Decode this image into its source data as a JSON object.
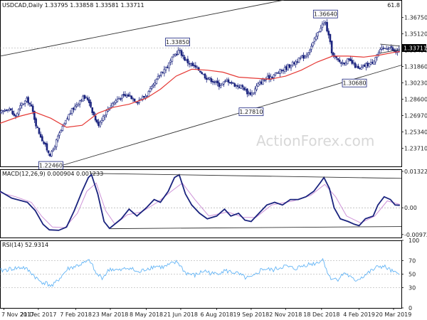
{
  "chart_data": [
    {
      "type": "candlestick",
      "title": "USDCAD,Daily  1.33795 1.33858 1.33581 1.33711",
      "symbol": "USDCAD",
      "timeframe": "Daily",
      "ohlc_last": [
        1.33795,
        1.33858,
        1.33581,
        1.33711
      ],
      "price_label": "1.33711",
      "ylim": [
        1.219,
        1.385
      ],
      "y_ticks": [
        "1.36750",
        "1.35120",
        "1.33490",
        "1.31860",
        "1.30230",
        "1.28600",
        "1.26970",
        "1.25340",
        "1.23710"
      ],
      "y_tick_values": [
        1.3675,
        1.3512,
        1.3349,
        1.3186,
        1.3023,
        1.286,
        1.2697,
        1.2534,
        1.2371
      ],
      "x_ticks": [
        "7 Nov 2017",
        "21 Dec 2017",
        "7 Feb 2018",
        "23 Mar 2018",
        "8 May 2018",
        "21 Jun 2018",
        "6 Aug 2018",
        "19 Sep 2018",
        "2 Nov 2018",
        "18 Dec 2018",
        "4 Feb 2019",
        "20 Mar 2019"
      ],
      "x_tick_days": [
        0,
        44,
        92,
        136,
        182,
        226,
        272,
        316,
        360,
        406,
        454,
        498
      ],
      "x_range_days": [
        -5,
        508
      ],
      "close_anchors": [
        {
          "d": -5,
          "v": 1.272
        },
        {
          "d": 6,
          "v": 1.278
        },
        {
          "d": 14,
          "v": 1.268
        },
        {
          "d": 22,
          "v": 1.28
        },
        {
          "d": 30,
          "v": 1.286
        },
        {
          "d": 36,
          "v": 1.276
        },
        {
          "d": 42,
          "v": 1.258
        },
        {
          "d": 50,
          "v": 1.244
        },
        {
          "d": 55,
          "v": 1.236
        },
        {
          "d": 60,
          "v": 1.23
        },
        {
          "d": 64,
          "v": 1.238
        },
        {
          "d": 70,
          "v": 1.25
        },
        {
          "d": 78,
          "v": 1.262
        },
        {
          "d": 84,
          "v": 1.272
        },
        {
          "d": 92,
          "v": 1.28
        },
        {
          "d": 100,
          "v": 1.288
        },
        {
          "d": 108,
          "v": 1.286
        },
        {
          "d": 114,
          "v": 1.272
        },
        {
          "d": 120,
          "v": 1.26
        },
        {
          "d": 126,
          "v": 1.268
        },
        {
          "d": 136,
          "v": 1.28
        },
        {
          "d": 148,
          "v": 1.288
        },
        {
          "d": 160,
          "v": 1.29
        },
        {
          "d": 170,
          "v": 1.284
        },
        {
          "d": 182,
          "v": 1.29
        },
        {
          "d": 192,
          "v": 1.3
        },
        {
          "d": 200,
          "v": 1.312
        },
        {
          "d": 210,
          "v": 1.32
        },
        {
          "d": 218,
          "v": 1.33
        },
        {
          "d": 224,
          "v": 1.335
        },
        {
          "d": 232,
          "v": 1.325
        },
        {
          "d": 240,
          "v": 1.32
        },
        {
          "d": 250,
          "v": 1.315
        },
        {
          "d": 258,
          "v": 1.308
        },
        {
          "d": 266,
          "v": 1.305
        },
        {
          "d": 276,
          "v": 1.3
        },
        {
          "d": 286,
          "v": 1.305
        },
        {
          "d": 296,
          "v": 1.3
        },
        {
          "d": 306,
          "v": 1.298
        },
        {
          "d": 312,
          "v": 1.292
        },
        {
          "d": 318,
          "v": 1.292
        },
        {
          "d": 324,
          "v": 1.3
        },
        {
          "d": 332,
          "v": 1.305
        },
        {
          "d": 344,
          "v": 1.31
        },
        {
          "d": 356,
          "v": 1.315
        },
        {
          "d": 366,
          "v": 1.32
        },
        {
          "d": 376,
          "v": 1.325
        },
        {
          "d": 386,
          "v": 1.33
        },
        {
          "d": 394,
          "v": 1.34
        },
        {
          "d": 400,
          "v": 1.35
        },
        {
          "d": 406,
          "v": 1.36
        },
        {
          "d": 411,
          "v": 1.362
        },
        {
          "d": 416,
          "v": 1.345
        },
        {
          "d": 420,
          "v": 1.33
        },
        {
          "d": 426,
          "v": 1.325
        },
        {
          "d": 432,
          "v": 1.322
        },
        {
          "d": 440,
          "v": 1.325
        },
        {
          "d": 448,
          "v": 1.32
        },
        {
          "d": 454,
          "v": 1.315
        },
        {
          "d": 462,
          "v": 1.32
        },
        {
          "d": 470,
          "v": 1.322
        },
        {
          "d": 476,
          "v": 1.33
        },
        {
          "d": 482,
          "v": 1.335
        },
        {
          "d": 488,
          "v": 1.338
        },
        {
          "d": 494,
          "v": 1.338
        },
        {
          "d": 500,
          "v": 1.332
        },
        {
          "d": 506,
          "v": 1.3371
        }
      ],
      "ma_anchors": [
        {
          "d": -5,
          "v": 1.262
        },
        {
          "d": 20,
          "v": 1.269
        },
        {
          "d": 40,
          "v": 1.273
        },
        {
          "d": 60,
          "v": 1.267
        },
        {
          "d": 80,
          "v": 1.258
        },
        {
          "d": 100,
          "v": 1.26
        },
        {
          "d": 120,
          "v": 1.272
        },
        {
          "d": 140,
          "v": 1.278
        },
        {
          "d": 160,
          "v": 1.281
        },
        {
          "d": 182,
          "v": 1.287
        },
        {
          "d": 200,
          "v": 1.296
        },
        {
          "d": 220,
          "v": 1.309
        },
        {
          "d": 240,
          "v": 1.316
        },
        {
          "d": 260,
          "v": 1.315
        },
        {
          "d": 280,
          "v": 1.313
        },
        {
          "d": 300,
          "v": 1.308
        },
        {
          "d": 320,
          "v": 1.307
        },
        {
          "d": 340,
          "v": 1.306
        },
        {
          "d": 360,
          "v": 1.309
        },
        {
          "d": 380,
          "v": 1.315
        },
        {
          "d": 400,
          "v": 1.323
        },
        {
          "d": 420,
          "v": 1.329
        },
        {
          "d": 440,
          "v": 1.329
        },
        {
          "d": 460,
          "v": 1.328
        },
        {
          "d": 480,
          "v": 1.33
        },
        {
          "d": 500,
          "v": 1.333
        },
        {
          "d": 506,
          "v": 1.3335
        }
      ],
      "annotations": [
        {
          "label": "1.36640",
          "d": 411,
          "v": 1.3664,
          "pos": "above"
        },
        {
          "label": "1.33850",
          "d": 222,
          "v": 1.3385,
          "pos": "above"
        },
        {
          "label": "1.30680",
          "d": 448,
          "v": 1.3068,
          "pos": "below"
        },
        {
          "label": "1.27810",
          "d": 316,
          "v": 1.2781,
          "pos": "below"
        },
        {
          "label": "1.22460",
          "d": 60,
          "v": 1.2246,
          "pos": "below"
        }
      ],
      "trendlines": [
        {
          "from": {
            "d": -5,
            "v": 1.329
          },
          "to": {
            "d": 358,
            "v": 1.385
          }
        },
        {
          "from": {
            "d": 70,
            "v": 1.219
          },
          "to": {
            "d": 508,
            "v": 1.32
          }
        },
        {
          "from": {
            "d": 481,
            "v": 1.341
          },
          "to": {
            "d": 506,
            "v": 1.339
          }
        },
        {
          "from": {
            "d": 481,
            "v": 1.332
          },
          "to": {
            "d": 506,
            "v": 1.3355
          }
        }
      ],
      "corner_label": "61.8",
      "watermark": "ActionForex.com"
    },
    {
      "type": "line",
      "title": "MACD(12,26,9) 0.000904 0.001233",
      "name": "MACD",
      "ylim": [
        -0.0108,
        0.014
      ],
      "y_ticks": [
        "0.013224",
        "0.00",
        "-0.009721"
      ],
      "y_tick_values": [
        0.013224,
        0.0,
        -0.009721
      ],
      "macd_anchors": [
        {
          "d": -5,
          "v": 0.006
        },
        {
          "d": 10,
          "v": 0.0035
        },
        {
          "d": 30,
          "v": 0.002
        },
        {
          "d": 40,
          "v": -0.001
        },
        {
          "d": 50,
          "v": -0.006
        },
        {
          "d": 58,
          "v": -0.008
        },
        {
          "d": 70,
          "v": -0.0082
        },
        {
          "d": 80,
          "v": -0.007
        },
        {
          "d": 90,
          "v": -0.001
        },
        {
          "d": 100,
          "v": 0.006
        },
        {
          "d": 108,
          "v": 0.011
        },
        {
          "d": 112,
          "v": 0.012
        },
        {
          "d": 120,
          "v": 0.005
        },
        {
          "d": 128,
          "v": -0.005
        },
        {
          "d": 135,
          "v": -0.0075
        },
        {
          "d": 150,
          "v": -0.004
        },
        {
          "d": 160,
          "v": -0.0005
        },
        {
          "d": 170,
          "v": -0.003
        },
        {
          "d": 182,
          "v": 0.0
        },
        {
          "d": 192,
          "v": 0.003
        },
        {
          "d": 200,
          "v": 0.002
        },
        {
          "d": 210,
          "v": 0.006
        },
        {
          "d": 218,
          "v": 0.011
        },
        {
          "d": 224,
          "v": 0.012
        },
        {
          "d": 232,
          "v": 0.005
        },
        {
          "d": 240,
          "v": 0.001
        },
        {
          "d": 250,
          "v": -0.002
        },
        {
          "d": 260,
          "v": -0.004
        },
        {
          "d": 272,
          "v": -0.003
        },
        {
          "d": 282,
          "v": -0.0005
        },
        {
          "d": 290,
          "v": -0.003
        },
        {
          "d": 300,
          "v": -0.002
        },
        {
          "d": 308,
          "v": -0.0045
        },
        {
          "d": 316,
          "v": -0.005
        },
        {
          "d": 326,
          "v": -0.002
        },
        {
          "d": 336,
          "v": 0.001
        },
        {
          "d": 346,
          "v": 0.002
        },
        {
          "d": 356,
          "v": 0.001
        },
        {
          "d": 366,
          "v": 0.003
        },
        {
          "d": 376,
          "v": 0.003
        },
        {
          "d": 386,
          "v": 0.004
        },
        {
          "d": 396,
          "v": 0.006
        },
        {
          "d": 404,
          "v": 0.009
        },
        {
          "d": 409,
          "v": 0.011
        },
        {
          "d": 416,
          "v": 0.007
        },
        {
          "d": 422,
          "v": 0.0
        },
        {
          "d": 430,
          "v": -0.004
        },
        {
          "d": 440,
          "v": -0.005
        },
        {
          "d": 448,
          "v": -0.006
        },
        {
          "d": 454,
          "v": -0.0065
        },
        {
          "d": 462,
          "v": -0.004
        },
        {
          "d": 472,
          "v": -0.003
        },
        {
          "d": 478,
          "v": 0.001
        },
        {
          "d": 486,
          "v": 0.004
        },
        {
          "d": 494,
          "v": 0.003
        },
        {
          "d": 500,
          "v": 0.001
        },
        {
          "d": 506,
          "v": 0.0009
        }
      ],
      "signal_anchors": [
        {
          "d": -5,
          "v": 0.0055
        },
        {
          "d": 15,
          "v": 0.004
        },
        {
          "d": 35,
          "v": 0.002
        },
        {
          "d": 48,
          "v": -0.003
        },
        {
          "d": 62,
          "v": -0.007
        },
        {
          "d": 78,
          "v": -0.0072
        },
        {
          "d": 94,
          "v": -0.002
        },
        {
          "d": 106,
          "v": 0.006
        },
        {
          "d": 118,
          "v": 0.009
        },
        {
          "d": 130,
          "v": -0.001
        },
        {
          "d": 142,
          "v": -0.006
        },
        {
          "d": 158,
          "v": -0.0025
        },
        {
          "d": 176,
          "v": -0.0015
        },
        {
          "d": 196,
          "v": 0.002
        },
        {
          "d": 214,
          "v": 0.006
        },
        {
          "d": 228,
          "v": 0.009
        },
        {
          "d": 244,
          "v": 0.003
        },
        {
          "d": 262,
          "v": -0.003
        },
        {
          "d": 286,
          "v": -0.0015
        },
        {
          "d": 306,
          "v": -0.0035
        },
        {
          "d": 322,
          "v": -0.0035
        },
        {
          "d": 342,
          "v": 0.001
        },
        {
          "d": 370,
          "v": 0.0025
        },
        {
          "d": 392,
          "v": 0.0045
        },
        {
          "d": 410,
          "v": 0.0085
        },
        {
          "d": 424,
          "v": 0.004
        },
        {
          "d": 438,
          "v": -0.003
        },
        {
          "d": 456,
          "v": -0.0055
        },
        {
          "d": 474,
          "v": -0.003
        },
        {
          "d": 490,
          "v": 0.0025
        },
        {
          "d": 506,
          "v": 0.0012
        }
      ],
      "trendlines": [
        {
          "from": {
            "d": 110,
            "v": 0.0125
          },
          "to": {
            "d": 508,
            "v": 0.0107
          }
        },
        {
          "from": {
            "d": 136,
            "v": -0.0076
          },
          "to": {
            "d": 508,
            "v": -0.0068
          }
        }
      ]
    },
    {
      "type": "line",
      "title": "RSI(14) 52.9314",
      "name": "RSI(14)",
      "ylim": [
        0,
        100
      ],
      "y_ticks": [
        "100",
        "70",
        "50",
        "30",
        "0"
      ],
      "y_tick_values": [
        100,
        70,
        50,
        30,
        0
      ],
      "rsi_anchors": [
        {
          "d": -5,
          "v": 55
        },
        {
          "d": 10,
          "v": 58
        },
        {
          "d": 25,
          "v": 60
        },
        {
          "d": 35,
          "v": 52
        },
        {
          "d": 45,
          "v": 40
        },
        {
          "d": 55,
          "v": 36
        },
        {
          "d": 62,
          "v": 32
        },
        {
          "d": 72,
          "v": 45
        },
        {
          "d": 82,
          "v": 58
        },
        {
          "d": 92,
          "v": 62
        },
        {
          "d": 102,
          "v": 66
        },
        {
          "d": 110,
          "v": 70
        },
        {
          "d": 118,
          "v": 50
        },
        {
          "d": 126,
          "v": 45
        },
        {
          "d": 136,
          "v": 58
        },
        {
          "d": 148,
          "v": 55
        },
        {
          "d": 160,
          "v": 60
        },
        {
          "d": 172,
          "v": 52
        },
        {
          "d": 182,
          "v": 58
        },
        {
          "d": 194,
          "v": 62
        },
        {
          "d": 204,
          "v": 60
        },
        {
          "d": 214,
          "v": 65
        },
        {
          "d": 222,
          "v": 68
        },
        {
          "d": 232,
          "v": 52
        },
        {
          "d": 244,
          "v": 48
        },
        {
          "d": 256,
          "v": 55
        },
        {
          "d": 268,
          "v": 50
        },
        {
          "d": 282,
          "v": 55
        },
        {
          "d": 296,
          "v": 52
        },
        {
          "d": 310,
          "v": 44
        },
        {
          "d": 318,
          "v": 45
        },
        {
          "d": 330,
          "v": 58
        },
        {
          "d": 344,
          "v": 56
        },
        {
          "d": 358,
          "v": 62
        },
        {
          "d": 372,
          "v": 58
        },
        {
          "d": 386,
          "v": 64
        },
        {
          "d": 398,
          "v": 66
        },
        {
          "d": 408,
          "v": 72
        },
        {
          "d": 416,
          "v": 45
        },
        {
          "d": 426,
          "v": 42
        },
        {
          "d": 436,
          "v": 52
        },
        {
          "d": 448,
          "v": 40
        },
        {
          "d": 458,
          "v": 46
        },
        {
          "d": 470,
          "v": 55
        },
        {
          "d": 480,
          "v": 62
        },
        {
          "d": 488,
          "v": 60
        },
        {
          "d": 496,
          "v": 54
        },
        {
          "d": 502,
          "v": 50
        },
        {
          "d": 506,
          "v": 52.9
        }
      ]
    }
  ]
}
